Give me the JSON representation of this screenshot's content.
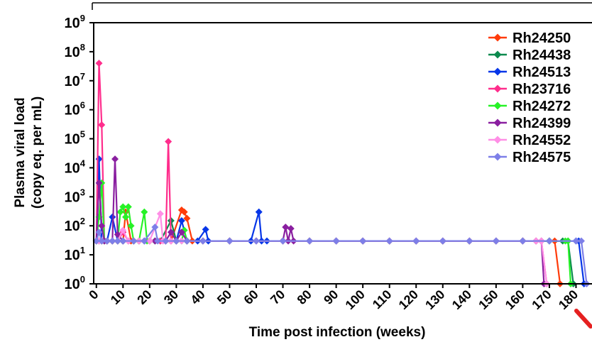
{
  "chart_data": {
    "type": "line",
    "y_scale": "log",
    "ylabel_line1": "Plasma viral load",
    "ylabel_line2": "(copy eq. per mL)",
    "xlabel": "Time post infection (weeks)",
    "xlim": [
      -1,
      186
    ],
    "ylim": [
      1,
      1000000000
    ],
    "x_ticks": [
      "0",
      "10",
      "20",
      "30",
      "40",
      "50",
      "60",
      "70",
      "80",
      "90",
      "100",
      "110",
      "120",
      "130",
      "140",
      "150",
      "160",
      "170",
      "180"
    ],
    "y_ticks": [
      {
        "base": "10",
        "exp": "0"
      },
      {
        "base": "10",
        "exp": "1"
      },
      {
        "base": "10",
        "exp": "2"
      },
      {
        "base": "10",
        "exp": "3"
      },
      {
        "base": "10",
        "exp": "4"
      },
      {
        "base": "10",
        "exp": "5"
      },
      {
        "base": "10",
        "exp": "6"
      },
      {
        "base": "10",
        "exp": "7"
      },
      {
        "base": "10",
        "exp": "8"
      },
      {
        "base": "10",
        "exp": "9"
      }
    ],
    "legend_position": "top-right",
    "series": [
      {
        "name": "Rh24250",
        "color": "#ff3b0a",
        "points": [
          [
            0,
            30
          ],
          [
            1,
            30
          ],
          [
            2,
            30
          ],
          [
            3,
            30
          ],
          [
            4,
            30
          ],
          [
            6,
            30
          ],
          [
            8,
            30
          ],
          [
            10,
            30
          ],
          [
            11,
            300
          ],
          [
            13,
            30
          ],
          [
            16,
            30
          ],
          [
            20,
            30
          ],
          [
            24,
            30
          ],
          [
            28,
            30
          ],
          [
            32,
            350
          ],
          [
            33,
            300
          ],
          [
            34,
            180
          ],
          [
            36,
            30
          ],
          [
            40,
            30
          ],
          [
            50,
            30
          ],
          [
            60,
            30
          ],
          [
            70,
            30
          ],
          [
            80,
            30
          ],
          [
            90,
            30
          ],
          [
            100,
            30
          ],
          [
            110,
            30
          ],
          [
            120,
            30
          ],
          [
            130,
            30
          ],
          [
            140,
            30
          ],
          [
            150,
            30
          ],
          [
            160,
            30
          ],
          [
            165,
            30
          ],
          [
            170,
            30
          ],
          [
            172,
            30
          ],
          [
            174,
            1
          ]
        ]
      },
      {
        "name": "Rh24438",
        "color": "#0c8a4e",
        "points": [
          [
            0,
            30
          ],
          [
            1,
            30
          ],
          [
            2,
            30
          ],
          [
            3,
            30
          ],
          [
            4,
            30
          ],
          [
            6,
            30
          ],
          [
            8,
            30
          ],
          [
            10,
            30
          ],
          [
            12,
            30
          ],
          [
            14,
            30
          ],
          [
            16,
            30
          ],
          [
            20,
            30
          ],
          [
            24,
            30
          ],
          [
            28,
            150
          ],
          [
            30,
            30
          ],
          [
            34,
            30
          ],
          [
            40,
            30
          ],
          [
            50,
            30
          ],
          [
            60,
            30
          ],
          [
            70,
            30
          ],
          [
            80,
            30
          ],
          [
            90,
            30
          ],
          [
            100,
            30
          ],
          [
            110,
            30
          ],
          [
            120,
            30
          ],
          [
            130,
            30
          ],
          [
            140,
            30
          ],
          [
            150,
            30
          ],
          [
            160,
            30
          ],
          [
            170,
            30
          ],
          [
            175,
            30
          ],
          [
            177,
            30
          ],
          [
            179,
            1
          ]
        ]
      },
      {
        "name": "Rh24513",
        "color": "#0636e8",
        "points": [
          [
            0,
            30
          ],
          [
            1,
            20000
          ],
          [
            2,
            30
          ],
          [
            4,
            30
          ],
          [
            6,
            200
          ],
          [
            8,
            30
          ],
          [
            10,
            30
          ],
          [
            14,
            30
          ],
          [
            18,
            30
          ],
          [
            22,
            30
          ],
          [
            26,
            30
          ],
          [
            30,
            30
          ],
          [
            32,
            150
          ],
          [
            34,
            30
          ],
          [
            38,
            30
          ],
          [
            41,
            75
          ],
          [
            42,
            30
          ],
          [
            50,
            30
          ],
          [
            58,
            30
          ],
          [
            61,
            300
          ],
          [
            62,
            30
          ],
          [
            64,
            30
          ],
          [
            70,
            30
          ],
          [
            80,
            30
          ],
          [
            90,
            30
          ],
          [
            100,
            30
          ],
          [
            110,
            30
          ],
          [
            120,
            30
          ],
          [
            130,
            30
          ],
          [
            140,
            30
          ],
          [
            150,
            30
          ],
          [
            160,
            30
          ],
          [
            170,
            30
          ],
          [
            180,
            30
          ],
          [
            181,
            30
          ],
          [
            183,
            1
          ]
        ]
      },
      {
        "name": "Rh23716",
        "color": "#ff2d8c",
        "points": [
          [
            0,
            30
          ],
          [
            1,
            40000000
          ],
          [
            2,
            300000
          ],
          [
            3,
            30
          ],
          [
            4,
            30
          ],
          [
            6,
            30
          ],
          [
            8,
            30
          ],
          [
            10,
            60
          ],
          [
            12,
            30
          ],
          [
            16,
            30
          ],
          [
            20,
            30
          ],
          [
            24,
            30
          ],
          [
            26,
            30
          ],
          [
            27,
            80000
          ],
          [
            28,
            30
          ],
          [
            30,
            30
          ],
          [
            34,
            30
          ],
          [
            40,
            30
          ],
          [
            50,
            30
          ],
          [
            60,
            30
          ],
          [
            70,
            30
          ],
          [
            80,
            30
          ],
          [
            90,
            30
          ],
          [
            100,
            30
          ],
          [
            110,
            30
          ],
          [
            120,
            30
          ],
          [
            130,
            30
          ],
          [
            140,
            30
          ],
          [
            150,
            30
          ],
          [
            160,
            30
          ],
          [
            165,
            30
          ],
          [
            167,
            30
          ],
          [
            169,
            1
          ]
        ]
      },
      {
        "name": "Rh24272",
        "color": "#27f227",
        "points": [
          [
            0,
            30
          ],
          [
            1,
            200
          ],
          [
            2,
            3000
          ],
          [
            3,
            30
          ],
          [
            4,
            30
          ],
          [
            6,
            30
          ],
          [
            8,
            30
          ],
          [
            9,
            300
          ],
          [
            10,
            450
          ],
          [
            11,
            200
          ],
          [
            12,
            450
          ],
          [
            13,
            100
          ],
          [
            14,
            30
          ],
          [
            16,
            30
          ],
          [
            18,
            300
          ],
          [
            19,
            30
          ],
          [
            22,
            30
          ],
          [
            26,
            30
          ],
          [
            30,
            30
          ],
          [
            32,
            30
          ],
          [
            33,
            70
          ],
          [
            34,
            30
          ],
          [
            40,
            30
          ],
          [
            50,
            30
          ],
          [
            60,
            30
          ],
          [
            70,
            30
          ],
          [
            80,
            30
          ],
          [
            90,
            30
          ],
          [
            100,
            30
          ],
          [
            110,
            30
          ],
          [
            120,
            30
          ],
          [
            130,
            30
          ],
          [
            140,
            30
          ],
          [
            150,
            30
          ],
          [
            160,
            30
          ],
          [
            170,
            30
          ],
          [
            176,
            30
          ],
          [
            177,
            30
          ],
          [
            178,
            1
          ]
        ]
      },
      {
        "name": "Rh24399",
        "color": "#8a1fa0",
        "points": [
          [
            0,
            30
          ],
          [
            1,
            3000
          ],
          [
            2,
            100
          ],
          [
            3,
            30
          ],
          [
            4,
            30
          ],
          [
            6,
            30
          ],
          [
            7,
            20000
          ],
          [
            8,
            50
          ],
          [
            10,
            30
          ],
          [
            14,
            30
          ],
          [
            18,
            30
          ],
          [
            22,
            30
          ],
          [
            26,
            30
          ],
          [
            28,
            60
          ],
          [
            30,
            30
          ],
          [
            32,
            60
          ],
          [
            34,
            30
          ],
          [
            40,
            30
          ],
          [
            50,
            30
          ],
          [
            60,
            30
          ],
          [
            70,
            30
          ],
          [
            71,
            90
          ],
          [
            72,
            30
          ],
          [
            73,
            80
          ],
          [
            74,
            30
          ],
          [
            80,
            30
          ],
          [
            90,
            30
          ],
          [
            100,
            30
          ],
          [
            110,
            30
          ],
          [
            120,
            30
          ],
          [
            130,
            30
          ],
          [
            140,
            30
          ],
          [
            150,
            30
          ],
          [
            160,
            30
          ],
          [
            165,
            30
          ],
          [
            167,
            30
          ],
          [
            168,
            1
          ]
        ]
      },
      {
        "name": "Rh24552",
        "color": "#ff8fe6",
        "points": [
          [
            0,
            30
          ],
          [
            1,
            30
          ],
          [
            2,
            30
          ],
          [
            4,
            30
          ],
          [
            6,
            30
          ],
          [
            8,
            30
          ],
          [
            10,
            70
          ],
          [
            12,
            30
          ],
          [
            16,
            30
          ],
          [
            20,
            30
          ],
          [
            24,
            260
          ],
          [
            25,
            30
          ],
          [
            28,
            30
          ],
          [
            32,
            30
          ],
          [
            40,
            30
          ],
          [
            50,
            30
          ],
          [
            60,
            30
          ],
          [
            70,
            30
          ],
          [
            80,
            30
          ],
          [
            90,
            30
          ],
          [
            100,
            30
          ],
          [
            110,
            30
          ],
          [
            120,
            30
          ],
          [
            130,
            30
          ],
          [
            140,
            30
          ],
          [
            150,
            30
          ],
          [
            160,
            30
          ],
          [
            165,
            30
          ],
          [
            167,
            30
          ],
          [
            169,
            1
          ]
        ]
      },
      {
        "name": "Rh24575",
        "color": "#7d7fe8",
        "points": [
          [
            0,
            30
          ],
          [
            1,
            60
          ],
          [
            2,
            30
          ],
          [
            4,
            30
          ],
          [
            6,
            30
          ],
          [
            8,
            30
          ],
          [
            10,
            30
          ],
          [
            14,
            30
          ],
          [
            18,
            30
          ],
          [
            22,
            90
          ],
          [
            23,
            30
          ],
          [
            26,
            30
          ],
          [
            30,
            30
          ],
          [
            34,
            30
          ],
          [
            40,
            30
          ],
          [
            50,
            30
          ],
          [
            60,
            30
          ],
          [
            70,
            30
          ],
          [
            80,
            30
          ],
          [
            90,
            30
          ],
          [
            100,
            30
          ],
          [
            110,
            30
          ],
          [
            120,
            30
          ],
          [
            130,
            30
          ],
          [
            140,
            30
          ],
          [
            150,
            30
          ],
          [
            160,
            30
          ],
          [
            170,
            30
          ],
          [
            180,
            30
          ],
          [
            182,
            30
          ],
          [
            184,
            1
          ]
        ]
      }
    ]
  }
}
